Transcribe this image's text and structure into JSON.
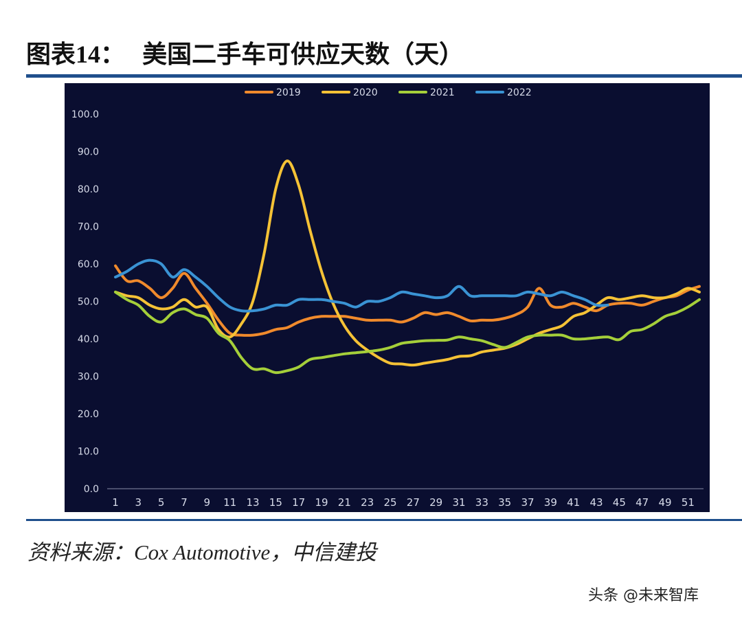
{
  "header": {
    "title_prefix": "图表",
    "title_number": "14：",
    "title_text": "美国二手车可供应天数（天）"
  },
  "footer": {
    "source": "资料来源：Cox Automotive，中信建投",
    "watermark": "头条 @未来智库"
  },
  "colors": {
    "background": "#0a0e30",
    "axis_text": "#d8dcea",
    "rule": "#1f4f8c"
  },
  "chart_data": {
    "type": "line",
    "title": "",
    "xlabel": "",
    "ylabel": "",
    "ylim": [
      0,
      100
    ],
    "yticks": [
      "0.0",
      "10.0",
      "20.0",
      "30.0",
      "40.0",
      "50.0",
      "60.0",
      "70.0",
      "80.0",
      "90.0",
      "100.0"
    ],
    "xticks": [
      1,
      3,
      5,
      7,
      9,
      11,
      13,
      15,
      17,
      19,
      21,
      23,
      25,
      27,
      29,
      31,
      33,
      35,
      37,
      39,
      41,
      43,
      45,
      47,
      49,
      51
    ],
    "xlim": [
      1,
      52
    ],
    "grid": false,
    "legend_position": "top",
    "series": [
      {
        "name": "2019",
        "color": "#f08a2c",
        "x": [
          1,
          2,
          3,
          4,
          5,
          6,
          7,
          8,
          9,
          10,
          11,
          12,
          13,
          14,
          15,
          16,
          17,
          18,
          19,
          20,
          21,
          22,
          23,
          24,
          25,
          26,
          27,
          28,
          29,
          30,
          31,
          32,
          33,
          34,
          35,
          36,
          37,
          38,
          39,
          40,
          41,
          42,
          43,
          44,
          45,
          46,
          47,
          48,
          49,
          50,
          51,
          52
        ],
        "values": [
          59.5,
          55.5,
          55.5,
          53.5,
          51,
          53.5,
          57.5,
          53.5,
          49.5,
          45,
          41.5,
          41,
          41,
          41.5,
          42.5,
          43,
          44.5,
          45.5,
          46,
          46,
          46,
          45.5,
          45,
          45,
          45,
          44.5,
          45.5,
          47,
          46.5,
          47,
          46,
          44.8,
          45,
          45,
          45.5,
          46.5,
          48.5,
          53.5,
          49,
          48.5,
          49.5,
          48.5,
          47.5,
          49,
          49.5,
          49.5,
          49,
          50,
          51,
          51.5,
          53,
          54
        ]
      },
      {
        "name": "2020",
        "color": "#f5c236",
        "x": [
          1,
          2,
          3,
          4,
          5,
          6,
          7,
          8,
          9,
          10,
          11,
          12,
          13,
          14,
          15,
          16,
          17,
          18,
          19,
          20,
          21,
          22,
          23,
          24,
          25,
          26,
          27,
          28,
          29,
          30,
          31,
          32,
          33,
          34,
          35,
          36,
          37,
          38,
          39,
          40,
          41,
          42,
          43,
          44,
          45,
          46,
          47,
          48,
          49,
          50,
          51,
          52
        ],
        "values": [
          52.5,
          51.5,
          51,
          49,
          48,
          48.5,
          50.5,
          48.5,
          48.5,
          42.5,
          40.5,
          44,
          50,
          63,
          80,
          87.5,
          81,
          69,
          58,
          49.5,
          43.5,
          39.5,
          37,
          35,
          33.5,
          33.3,
          33,
          33.5,
          34,
          34.5,
          35.3,
          35.5,
          36.5,
          37,
          37.5,
          38.5,
          40,
          41.5,
          42.5,
          43.5,
          46,
          47,
          49,
          51,
          50.5,
          51,
          51.5,
          51,
          51,
          52,
          53.5,
          52.5
        ]
      },
      {
        "name": "2021",
        "color": "#a5cf3a",
        "x": [
          1,
          2,
          3,
          4,
          5,
          6,
          7,
          8,
          9,
          10,
          11,
          12,
          13,
          14,
          15,
          16,
          17,
          18,
          19,
          20,
          21,
          22,
          23,
          24,
          25,
          26,
          27,
          28,
          29,
          30,
          31,
          32,
          33,
          34,
          35,
          36,
          37,
          38,
          39,
          40,
          41,
          42,
          43,
          44,
          45,
          46,
          47,
          48,
          49,
          50,
          51,
          52
        ],
        "values": [
          52.5,
          50.5,
          49,
          46,
          44.5,
          47,
          48,
          46.5,
          45.5,
          41.5,
          39.5,
          35,
          32,
          32,
          31,
          31.5,
          32.5,
          34.5,
          35,
          35.5,
          36,
          36.3,
          36.6,
          37,
          37.7,
          38.8,
          39.2,
          39.5,
          39.6,
          39.7,
          40.5,
          40,
          39.5,
          38.5,
          37.7,
          39,
          40.5,
          41,
          41,
          41,
          40,
          40,
          40.3,
          40.5,
          39.8,
          42,
          42.5,
          44,
          46,
          47,
          48.5,
          50.5
        ]
      },
      {
        "name": "2022",
        "color": "#3a93d4",
        "x": [
          1,
          2,
          3,
          4,
          5,
          6,
          7,
          8,
          9,
          10,
          11,
          12,
          13,
          14,
          15,
          16,
          17,
          18,
          19,
          20,
          21,
          22,
          23,
          24,
          25,
          26,
          27,
          28,
          29,
          30,
          31,
          32,
          33,
          34,
          35,
          36,
          37,
          38,
          39,
          40,
          41,
          42,
          43,
          44
        ],
        "values": [
          56.5,
          58,
          60,
          61,
          60,
          56.5,
          58.5,
          56.5,
          54,
          51,
          48.5,
          47.5,
          47.5,
          48,
          49,
          49,
          50.5,
          50.5,
          50.5,
          50,
          49.5,
          48.5,
          50,
          50,
          51,
          52.5,
          52,
          51.5,
          51,
          51.5,
          54,
          51.5,
          51.5,
          51.5,
          51.5,
          51.5,
          52.5,
          52,
          51.5,
          52.5,
          51.5,
          50.5,
          49,
          49
        ]
      }
    ]
  }
}
